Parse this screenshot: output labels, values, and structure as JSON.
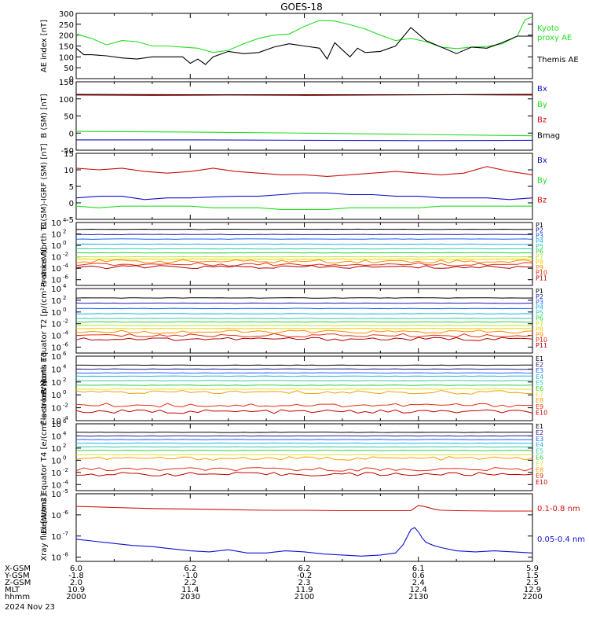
{
  "title": "GOES-18",
  "colors": {
    "axis": "#000000",
    "ae_kyoto": "#22dd22",
    "ae_themis": "#000000",
    "bx": "#1010c8",
    "by": "#22dd22",
    "bz": "#c81010",
    "bmag": "#000000",
    "xray_long": "#d01010",
    "xray_short": "#1010d0"
  },
  "proton_channel_colors": [
    "#000000",
    "#000000",
    "#1a1aaa",
    "#1560ff",
    "#20b0e0",
    "#30c8a8",
    "#30d040",
    "#b8e830",
    "#f0d000",
    "#ff8c00",
    "#e03010",
    "#b00000"
  ],
  "electron_channel_colors": [
    "#000000",
    "#000000",
    "#202090",
    "#2060ff",
    "#20b0e0",
    "#30c8a8",
    "#30d040",
    "#e0e040",
    "#f0a000",
    "#e03010",
    "#c00000"
  ],
  "bottom_axis": {
    "ticks": [
      "2000",
      "2030",
      "2100",
      "2130",
      "2200"
    ],
    "rows": [
      {
        "label": "X-GSM",
        "values": [
          "6.0",
          "6.2",
          "6.2",
          "6.1",
          "5.9"
        ]
      },
      {
        "label": "Y-GSM",
        "values": [
          "-1.8",
          "-1.0",
          "-0.2",
          "0.6",
          "1.5"
        ]
      },
      {
        "label": "Z-GSM",
        "values": [
          "2.0",
          "2.2",
          "2.3",
          "2.4",
          "2.5"
        ]
      },
      {
        "label": "MLT",
        "values": [
          "10.9",
          "11.4",
          "11.9",
          "12.4",
          "12.9"
        ]
      },
      {
        "label": "hhmm",
        "values": [
          "2000",
          "2030",
          "2100",
          "2130",
          "2200"
        ]
      }
    ],
    "date": "2024 Nov 23"
  },
  "chart_data": [
    {
      "type": "line",
      "ylabel": "AE index [nT]",
      "ylim": [
        0,
        300
      ],
      "yticks": [
        "0",
        "50",
        "100",
        "150",
        "200",
        "250",
        "300"
      ],
      "xlim": [
        0,
        120
      ],
      "legend": [
        {
          "lines": [
            "Kyoto",
            "proxy AE"
          ],
          "color_key": "ae_kyoto"
        },
        {
          "lines": [
            "Themis AE"
          ],
          "color_key": "ae_themis"
        }
      ],
      "series": [
        {
          "name": "Kyoto proxy AE",
          "color_key": "ae_kyoto",
          "x": [
            0,
            4,
            8,
            12,
            16,
            20,
            24,
            28,
            32,
            36,
            40,
            44,
            48,
            52,
            56,
            60,
            64,
            68,
            72,
            76,
            80,
            84,
            88,
            92,
            96,
            100,
            104,
            108,
            112,
            116,
            118,
            120
          ],
          "values": [
            205,
            185,
            155,
            175,
            170,
            150,
            150,
            145,
            140,
            120,
            130,
            160,
            185,
            200,
            205,
            240,
            268,
            265,
            248,
            228,
            200,
            175,
            185,
            170,
            145,
            138,
            145,
            148,
            160,
            195,
            270,
            285
          ]
        },
        {
          "name": "Themis AE",
          "color_key": "ae_themis",
          "x": [
            0,
            2,
            4,
            8,
            12,
            16,
            20,
            24,
            28,
            30,
            32,
            34,
            36,
            40,
            44,
            48,
            52,
            56,
            60,
            64,
            66,
            68,
            72,
            74,
            76,
            80,
            84,
            88,
            92,
            96,
            100,
            104,
            108,
            112,
            116,
            120
          ],
          "values": [
            140,
            110,
            110,
            105,
            95,
            90,
            100,
            100,
            100,
            70,
            90,
            65,
            100,
            125,
            115,
            120,
            145,
            160,
            150,
            140,
            90,
            165,
            100,
            140,
            120,
            125,
            150,
            235,
            175,
            145,
            115,
            145,
            140,
            165,
            195,
            195
          ]
        }
      ]
    },
    {
      "type": "line",
      "ylabel": "B (SM) [nT]",
      "ylim": [
        -50,
        150
      ],
      "yticks": [
        "-50",
        "0",
        "50",
        "100",
        "150"
      ],
      "xlim": [
        0,
        120
      ],
      "legend": [
        {
          "lines": [
            "Bx"
          ],
          "color_key": "bx"
        },
        {
          "lines": [
            "By"
          ],
          "color_key": "by"
        },
        {
          "lines": [
            "Bz"
          ],
          "color_key": "bz"
        },
        {
          "lines": [
            "Bmag"
          ],
          "color_key": "bmag"
        }
      ],
      "series": [
        {
          "name": "Bx",
          "color_key": "bx",
          "x": [
            0,
            30,
            60,
            90,
            120
          ],
          "values": [
            -20,
            -20,
            -21,
            -22,
            -21
          ]
        },
        {
          "name": "By",
          "color_key": "by",
          "x": [
            0,
            30,
            60,
            90,
            120
          ],
          "values": [
            5,
            3,
            0,
            -4,
            -8
          ]
        },
        {
          "name": "Bz",
          "color_key": "bz",
          "x": [
            0,
            20,
            40,
            60,
            80,
            100,
            120
          ],
          "values": [
            111,
            110,
            111,
            110,
            111,
            112,
            111
          ]
        },
        {
          "name": "Bmag",
          "color_key": "bmag",
          "x": [
            0,
            30,
            60,
            90,
            120
          ],
          "values": [
            113,
            112,
            112,
            112,
            113
          ]
        }
      ]
    },
    {
      "type": "line",
      "ylabel": "B (SM)-IGRF (SM) [nT]",
      "ylim": [
        -5,
        15
      ],
      "yticks": [
        "-5",
        "0",
        "5",
        "10",
        "15"
      ],
      "xlim": [
        0,
        120
      ],
      "legend": [
        {
          "lines": [
            "Bx"
          ],
          "color_key": "bx"
        },
        {
          "lines": [
            "By"
          ],
          "color_key": "by"
        },
        {
          "lines": [
            "Bz"
          ],
          "color_key": "bz"
        }
      ],
      "series": [
        {
          "name": "Bx",
          "color_key": "bx",
          "x": [
            0,
            6,
            12,
            18,
            24,
            30,
            36,
            42,
            48,
            54,
            60,
            66,
            72,
            78,
            84,
            90,
            96,
            102,
            108,
            114,
            120
          ],
          "values": [
            1.5,
            2.0,
            2.0,
            1.0,
            1.5,
            1.5,
            1.8,
            2.0,
            2.0,
            2.5,
            3.0,
            3.0,
            2.5,
            2.5,
            2.0,
            2.0,
            1.5,
            1.5,
            1.5,
            1.0,
            1.5
          ]
        },
        {
          "name": "By",
          "color_key": "by",
          "x": [
            0,
            6,
            12,
            18,
            24,
            30,
            36,
            42,
            48,
            54,
            60,
            66,
            72,
            78,
            84,
            90,
            96,
            102,
            108,
            114,
            120
          ],
          "values": [
            -1.0,
            -1.5,
            -1.0,
            -1.0,
            -1.0,
            -1.0,
            -1.5,
            -1.5,
            -1.5,
            -2.0,
            -2.0,
            -2.0,
            -1.5,
            -1.5,
            -1.5,
            -1.5,
            -1.0,
            -1.0,
            -1.0,
            -1.0,
            -1.0
          ]
        },
        {
          "name": "Bz",
          "color_key": "bz",
          "x": [
            0,
            6,
            12,
            18,
            24,
            30,
            36,
            42,
            48,
            54,
            60,
            66,
            72,
            78,
            84,
            90,
            96,
            102,
            108,
            114,
            120
          ],
          "values": [
            10.5,
            10.0,
            10.5,
            9.5,
            9.0,
            9.5,
            10.5,
            9.5,
            9.0,
            8.5,
            8.5,
            8.0,
            8.5,
            9.0,
            9.5,
            9.0,
            8.5,
            9.0,
            11.0,
            9.5,
            8.5
          ]
        }
      ]
    },
    {
      "type": "line",
      "log": true,
      "ylabel": "Protons North T1",
      "ylim_exp": [
        -7,
        4
      ],
      "ytick_exps": [
        -6,
        -4,
        -2,
        0,
        2,
        4
      ],
      "xlim": [
        0,
        120
      ],
      "channels": [
        "P1",
        "P2",
        "P3",
        "P4",
        "P5",
        "P6",
        "P7",
        "P8",
        "P9",
        "P10",
        "P11"
      ],
      "levels_exp": [
        2.8,
        1.9,
        1.1,
        0.2,
        -0.6,
        -1.3,
        -2.0,
        -2.4,
        -2.8,
        -3.3,
        -3.8
      ]
    },
    {
      "type": "line",
      "log": true,
      "ylabel": "Protons Equator T2 [p/(cm²-s-sr-keV)]",
      "ylim_exp": [
        -7,
        4
      ],
      "ytick_exps": [
        -6,
        -4,
        -2,
        0,
        2,
        4
      ],
      "xlim": [
        0,
        120
      ],
      "channels": [
        "P1",
        "P2",
        "P3",
        "P4",
        "P5",
        "P6",
        "P7",
        "P8",
        "P9",
        "P10",
        "P11"
      ],
      "levels_exp": [
        2.4,
        1.5,
        0.6,
        -0.3,
        -1.1,
        -1.7,
        -2.3,
        -2.8,
        -3.4,
        -4.0,
        -4.6
      ]
    },
    {
      "type": "line",
      "log": true,
      "ylabel": "Electrons North T3",
      "ylim_exp": [
        -4,
        6
      ],
      "ytick_exps": [
        -4,
        -2,
        0,
        2,
        4,
        6
      ],
      "xlim": [
        0,
        120
      ],
      "channels": [
        "E1",
        "E2",
        "E3",
        "E4",
        "E5",
        "E6",
        "E7",
        "E8",
        "E9",
        "E10"
      ],
      "levels_exp": [
        4.6,
        4.0,
        3.4,
        2.9,
        2.2,
        1.5,
        0.9,
        0.4,
        -1.6,
        -2.6
      ]
    },
    {
      "type": "line",
      "log": true,
      "ylabel": "Electrons Equator T4 [e/(cm²-s-sr-keV)]",
      "ylim_exp": [
        -5,
        6
      ],
      "ytick_exps": [
        -4,
        -2,
        0,
        2,
        4,
        6
      ],
      "xlim": [
        0,
        120
      ],
      "channels": [
        "E1",
        "E2",
        "E3",
        "E4",
        "E5",
        "E6",
        "E7",
        "E8",
        "E9",
        "E10"
      ],
      "levels_exp": [
        4.6,
        4.0,
        3.4,
        2.8,
        2.2,
        1.6,
        0.9,
        0.3,
        -1.5,
        -2.3
      ]
    },
    {
      "type": "line",
      "log": true,
      "ylabel": "Xray flux [W/m2]",
      "ylim_exp": [
        -8.2,
        -5
      ],
      "ytick_exps": [
        -8,
        -7,
        -6,
        -5
      ],
      "xlim": [
        0,
        120
      ],
      "legend": [
        {
          "lines": [
            "0.1-0.8 nm"
          ],
          "color_key": "xray_long"
        },
        {
          "lines": [
            "0.05-0.4 nm"
          ],
          "color_key": "xray_short"
        }
      ],
      "series": [
        {
          "name": "0.1-0.8 nm",
          "color_key": "xray_long",
          "x": [
            0,
            5,
            10,
            20,
            30,
            40,
            50,
            60,
            70,
            80,
            88,
            90,
            92,
            94,
            96,
            100,
            110,
            120
          ],
          "values_exp": [
            -5.6,
            -5.62,
            -5.65,
            -5.7,
            -5.72,
            -5.75,
            -5.78,
            -5.78,
            -5.8,
            -5.8,
            -5.8,
            -5.55,
            -5.62,
            -5.72,
            -5.78,
            -5.8,
            -5.82,
            -5.82
          ]
        },
        {
          "name": "0.05-0.4 nm",
          "color_key": "xray_short",
          "x": [
            0,
            5,
            10,
            15,
            20,
            25,
            30,
            35,
            40,
            45,
            50,
            55,
            60,
            65,
            70,
            75,
            80,
            84,
            86,
            88,
            89,
            90,
            91,
            92,
            94,
            96,
            100,
            105,
            110,
            115,
            120
          ],
          "values_exp": [
            -7.15,
            -7.25,
            -7.35,
            -7.45,
            -7.5,
            -7.6,
            -7.7,
            -7.75,
            -7.65,
            -7.8,
            -7.8,
            -7.7,
            -7.75,
            -7.85,
            -7.9,
            -7.95,
            -7.9,
            -7.8,
            -7.4,
            -6.7,
            -6.6,
            -6.8,
            -7.1,
            -7.3,
            -7.45,
            -7.55,
            -7.7,
            -7.75,
            -7.7,
            -7.75,
            -7.8
          ]
        }
      ]
    }
  ]
}
